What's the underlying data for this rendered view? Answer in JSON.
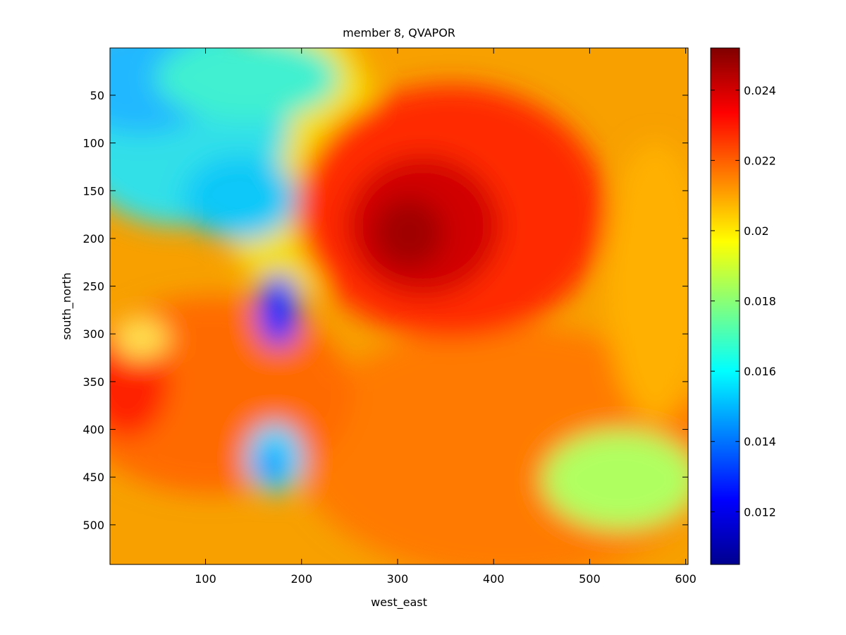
{
  "chart_data": {
    "type": "heatmap",
    "title": "member 8, QVAPOR",
    "xlabel": "west_east",
    "ylabel": "south_north",
    "xlim": [
      0.5,
      602.5
    ],
    "ylim": [
      0.5,
      541.5
    ],
    "y_reversed": true,
    "xticks": [
      100,
      200,
      300,
      400,
      500,
      600
    ],
    "yticks": [
      50,
      100,
      150,
      200,
      250,
      300,
      350,
      400,
      450,
      500
    ],
    "colorbar": {
      "colormap": "jet",
      "range": [
        0.0105,
        0.0252
      ],
      "ticks": [
        0.012,
        0.014,
        0.016,
        0.018,
        0.02,
        0.022,
        0.024
      ],
      "tick_labels": [
        "0.012",
        "0.014",
        "0.016",
        "0.018",
        "0.02",
        "0.022",
        "0.024"
      ]
    },
    "field_description_regions": [
      {
        "feature": "dry-northwest",
        "x": [
          0,
          220
        ],
        "y": [
          0,
          250
        ],
        "value": 0.0165
      },
      {
        "feature": "moist-core",
        "x": [
          250,
          470
        ],
        "y": [
          100,
          300
        ],
        "value": 0.0238
      },
      {
        "feature": "dry-pocket",
        "x": [
          160,
          200
        ],
        "y": [
          240,
          300
        ],
        "value": 0.012
      },
      {
        "feature": "dry-pocket-south",
        "x": [
          150,
          200
        ],
        "y": [
          410,
          470
        ],
        "value": 0.015
      },
      {
        "feature": "moist-west",
        "x": [
          0,
          80
        ],
        "y": [
          300,
          400
        ],
        "value": 0.023
      }
    ]
  }
}
